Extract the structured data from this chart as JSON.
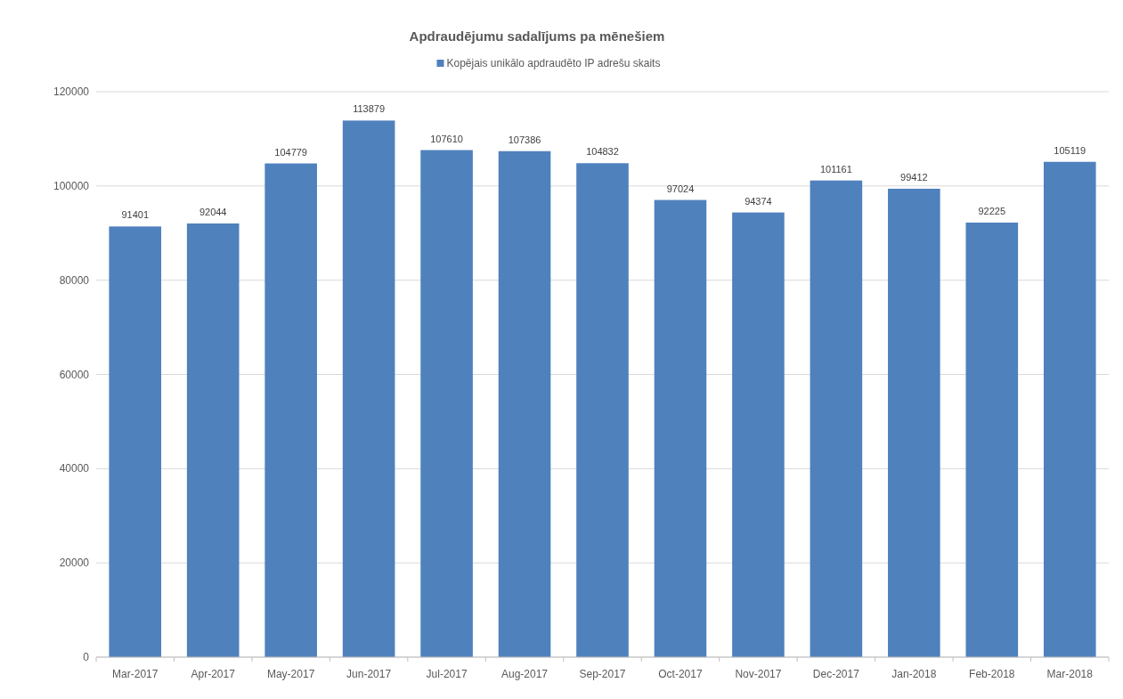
{
  "chart_data": {
    "type": "bar",
    "title": "Apdraudējumu sadalījums pa mēnešiem",
    "categories": [
      "Mar-2017",
      "Apr-2017",
      "May-2017",
      "Jun-2017",
      "Jul-2017",
      "Aug-2017",
      "Sep-2017",
      "Oct-2017",
      "Nov-2017",
      "Dec-2017",
      "Jan-2018",
      "Feb-2018",
      "Mar-2018"
    ],
    "series": [
      {
        "name": "Kopējais unikālo apdraudēto IP adrešu skaits",
        "color": "#4f81bd",
        "values": [
          91401,
          92044,
          104779,
          113879,
          107610,
          107386,
          104832,
          97024,
          94374,
          101161,
          99412,
          92225,
          105119
        ]
      }
    ],
    "ylim": [
      0,
      120000
    ],
    "yticks": [
      0,
      20000,
      40000,
      60000,
      80000,
      100000,
      120000
    ],
    "grid": "y",
    "legend": "top",
    "data_labels": true
  }
}
